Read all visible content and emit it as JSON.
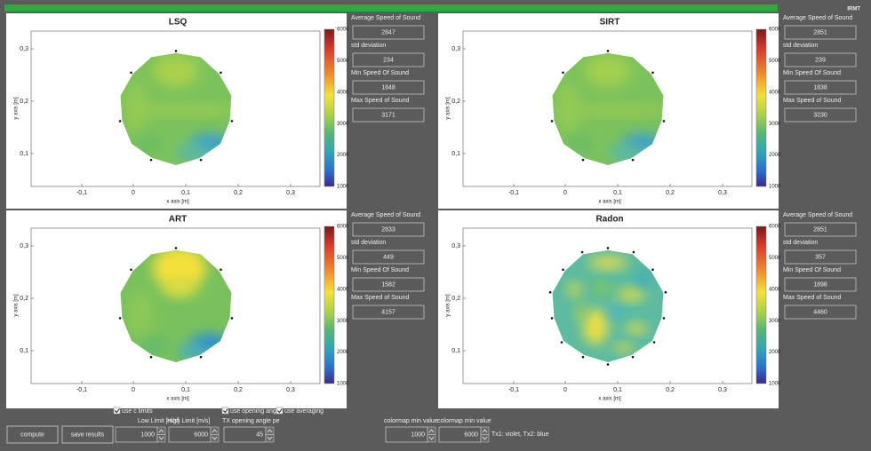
{
  "header": {
    "brand": "IRMT"
  },
  "plot": {
    "x_label": "x axis [m]",
    "y_label": "y axis [m]",
    "x_ticks": [
      "-0,1",
      "0",
      "0,1",
      "0,2",
      "0,3"
    ],
    "y_ticks": [
      "0,3",
      "0,2",
      "0,1"
    ],
    "colorbar_ticks": [
      6000,
      5000,
      4000,
      3000,
      2000,
      1000
    ]
  },
  "panels": [
    {
      "title": "LSQ",
      "stats": [
        {
          "label": "Average Speed of Sound",
          "value": 2847
        },
        {
          "label": "std deviation",
          "value": 234
        },
        {
          "label": "Min Speed Of Sound",
          "value": 1848
        },
        {
          "label": "Max Speed of Sound",
          "value": 3171
        }
      ]
    },
    {
      "title": "SIRT",
      "stats": [
        {
          "label": "Average Speed of Sound",
          "value": 2851
        },
        {
          "label": "std deviation",
          "value": 239
        },
        {
          "label": "Min Speed Of Sound",
          "value": 1838
        },
        {
          "label": "Max Speed of Sound",
          "value": 3230
        }
      ]
    },
    {
      "title": "ART",
      "stats": [
        {
          "label": "Average Speed of Sound",
          "value": 2833
        },
        {
          "label": "std deviation",
          "value": 449
        },
        {
          "label": "Min Speed Of Sound",
          "value": 1582
        },
        {
          "label": "Max Speed of Sound",
          "value": 4157
        }
      ]
    },
    {
      "title": "Radon",
      "stats": [
        {
          "label": "Average Speed of Sound",
          "value": 2851
        },
        {
          "label": "std deviation",
          "value": 357
        },
        {
          "label": "Min Speed Of Sound",
          "value": 1898
        },
        {
          "label": "Max Speed of Sound",
          "value": 4460
        }
      ]
    }
  ],
  "controls": {
    "buttons": [
      "compute",
      "save results"
    ],
    "checkboxes": [
      {
        "label": "use c limits",
        "checked": true
      },
      {
        "label": "use opening angl",
        "checked": true
      },
      {
        "label": "use averaging",
        "checked": true
      }
    ],
    "fields": [
      {
        "label": "Low Limit [m/s]",
        "value": 1000
      },
      {
        "label": "High Limit [m/s]",
        "value": 6000
      },
      {
        "label": "TX opening angle pe",
        "value": 45
      },
      {
        "label": "colormap min value",
        "value": 1000
      },
      {
        "label": "colormap min value",
        "value": 6000
      }
    ],
    "legend_note": "Tx1: violet, Tx2: blue"
  }
}
